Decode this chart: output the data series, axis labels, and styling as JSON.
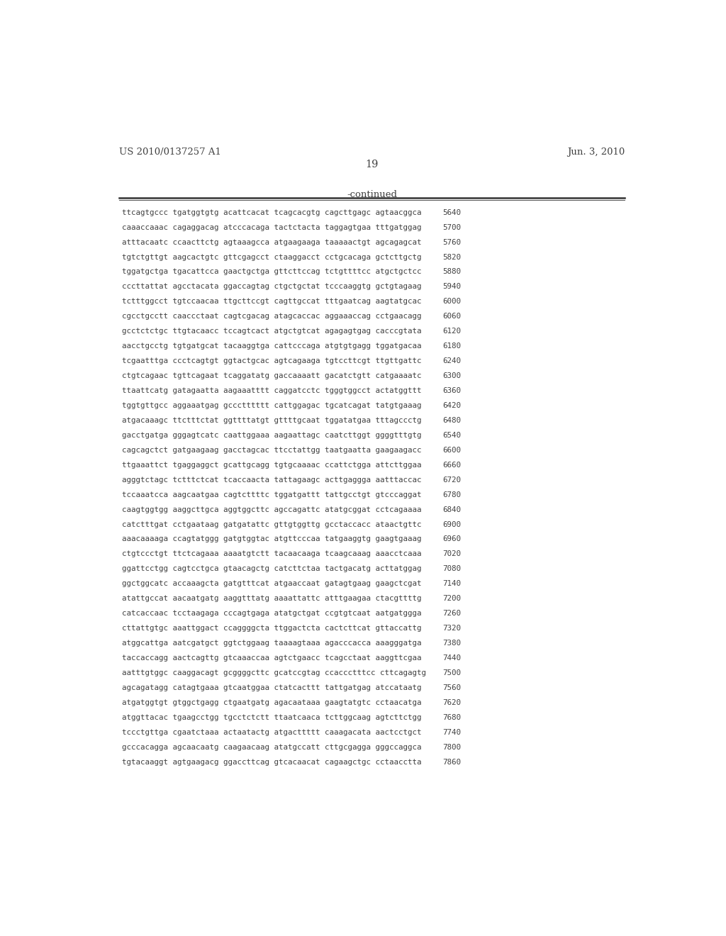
{
  "header_left": "US 2010/0137257 A1",
  "header_right": "Jun. 3, 2010",
  "page_number": "19",
  "continued_label": "-continued",
  "background_color": "#ffffff",
  "text_color": "#404040",
  "sequence_lines": [
    [
      "ttcagtgccc tgatggtgtg acattcacat tcagcacgtg cagcttgagc agtaacggca",
      "5640"
    ],
    [
      "caaaccaaac cagaggacag atcccacaga tactctacta taggagtgaa tttgatggag",
      "5700"
    ],
    [
      "atttacaatc ccaacttctg agtaaagcca atgaagaaga taaaaactgt agcagagcat",
      "5760"
    ],
    [
      "tgtctgttgt aagcactgtc gttcgagcct ctaaggacct cctgcacaga gctcttgctg",
      "5820"
    ],
    [
      "tggatgctga tgacattcca gaactgctga gttcttccag tctgttttcc atgctgctcc",
      "5880"
    ],
    [
      "cccttattat agcctacata ggaccagtag ctgctgctat tcccaaggtg gctgtagaag",
      "5940"
    ],
    [
      "tctttggcct tgtccaacaa ttgcttccgt cagttgccat tttgaatcag aagtatgcac",
      "6000"
    ],
    [
      "cgcctgcctt caaccctaat cagtcgacag atagcaccac aggaaaccag cctgaacagg",
      "6060"
    ],
    [
      "gcctctctgc ttgtacaacc tccagtcact atgctgtcat agagagtgag cacccgtata",
      "6120"
    ],
    [
      "aacctgcctg tgtgatgcat tacaaggtga cattcccaga atgtgtgagg tggatgacaa",
      "6180"
    ],
    [
      "tcgaatttga ccctcagtgt ggtactgcac agtcagaaga tgtccttcgt ttgttgattc",
      "6240"
    ],
    [
      "ctgtcagaac tgttcagaat tcaggatatg gaccaaaatt gacatctgtt catgaaaatc",
      "6300"
    ],
    [
      "ttaattcatg gatagaatta aagaaatttt caggatcctc tgggtggcct actatggttt",
      "6360"
    ],
    [
      "tggtgttgcc aggaaatgag gccctttttt cattggagac tgcatcagat tatgtgaaag",
      "6420"
    ],
    [
      "atgacaaagc ttctttctat ggttttatgt gttttgcaat tggatatgaa tttagccctg",
      "6480"
    ],
    [
      "gacctgatga gggagtcatc caattggaaa aagaattagc caatcttggt ggggtttgtg",
      "6540"
    ],
    [
      "cagcagctct gatgaagaag gacctagcac ttcctattgg taatgaatta gaagaagacc",
      "6600"
    ],
    [
      "ttgaaattct tgaggaggct gcattgcagg tgtgcaaaac ccattctgga attcttggaa",
      "6660"
    ],
    [
      "agggtctagc tctttctcat tcaccaacta tattagaagc acttgaggga aatttaccac",
      "6720"
    ],
    [
      "tccaaatcca aagcaatgaa cagtcttttc tggatgattt tattgcctgt gtcccaggat",
      "6780"
    ],
    [
      "caagtggtgg aaggcttgca aggtggcttc agccagattc atatgcggat cctcagaaaa",
      "6840"
    ],
    [
      "catctttgat cctgaataag gatgatattc gttgtggttg gcctaccacc ataactgttc",
      "6900"
    ],
    [
      "aaacaaaaga ccagtatggg gatgtggtac atgttcccaa tatgaaggtg gaagtgaaag",
      "6960"
    ],
    [
      "ctgtccctgt ttctcagaaa aaaatgtctt tacaacaaga tcaagcaaag aaacctcaaa",
      "7020"
    ],
    [
      "ggattcctgg cagtcctgca gtaacagctg catcttctaa tactgacatg acttatggag",
      "7080"
    ],
    [
      "ggctggcatc accaaagcta gatgtttcat atgaaccaat gatagtgaag gaagctcgat",
      "7140"
    ],
    [
      "atattgccat aacaatgatg aaggtttatg aaaattattc atttgaagaa ctacgttttg",
      "7200"
    ],
    [
      "catcaccaac tcctaagaga cccagtgaga atatgctgat ccgtgtcaat aatgatggga",
      "7260"
    ],
    [
      "cttattgtgc aaattggact ccaggggcta ttggactcta cactcttcat gttaccattg",
      "7320"
    ],
    [
      "atggcattga aatcgatgct ggtctggaag taaaagtaaa agacccacca aaagggatga",
      "7380"
    ],
    [
      "taccaccagg aactcagttg gtcaaaccaa agtctgaacc tcagcctaat aaggttcgaa",
      "7440"
    ],
    [
      "aatttgtggc caaggacagt gcggggcttc gcatccgtag ccaccctttcc cttcagagtg",
      "7500"
    ],
    [
      "agcagatagg catagtgaaa gtcaatggaa ctatcacttt tattgatgag atccataatg",
      "7560"
    ],
    [
      "atgatggtgt gtggctgagg ctgaatgatg agacaataaa gaagtatgtc cctaacatga",
      "7620"
    ],
    [
      "atggttacac tgaagcctgg tgcctctctt ttaatcaaca tcttggcaag agtcttctgg",
      "7680"
    ],
    [
      "tccctgttga cgaatctaaa actaatactg atgacttttt caaagacata aactcctgct",
      "7740"
    ],
    [
      "gcccacagga agcaacaatg caagaacaag atatgccatt cttgcgagga gggccaggca",
      "7800"
    ],
    [
      "tgtacaaggt agtgaagacg ggaccttcag gtcacaacat cagaagctgc cctaacctta",
      "7860"
    ]
  ]
}
